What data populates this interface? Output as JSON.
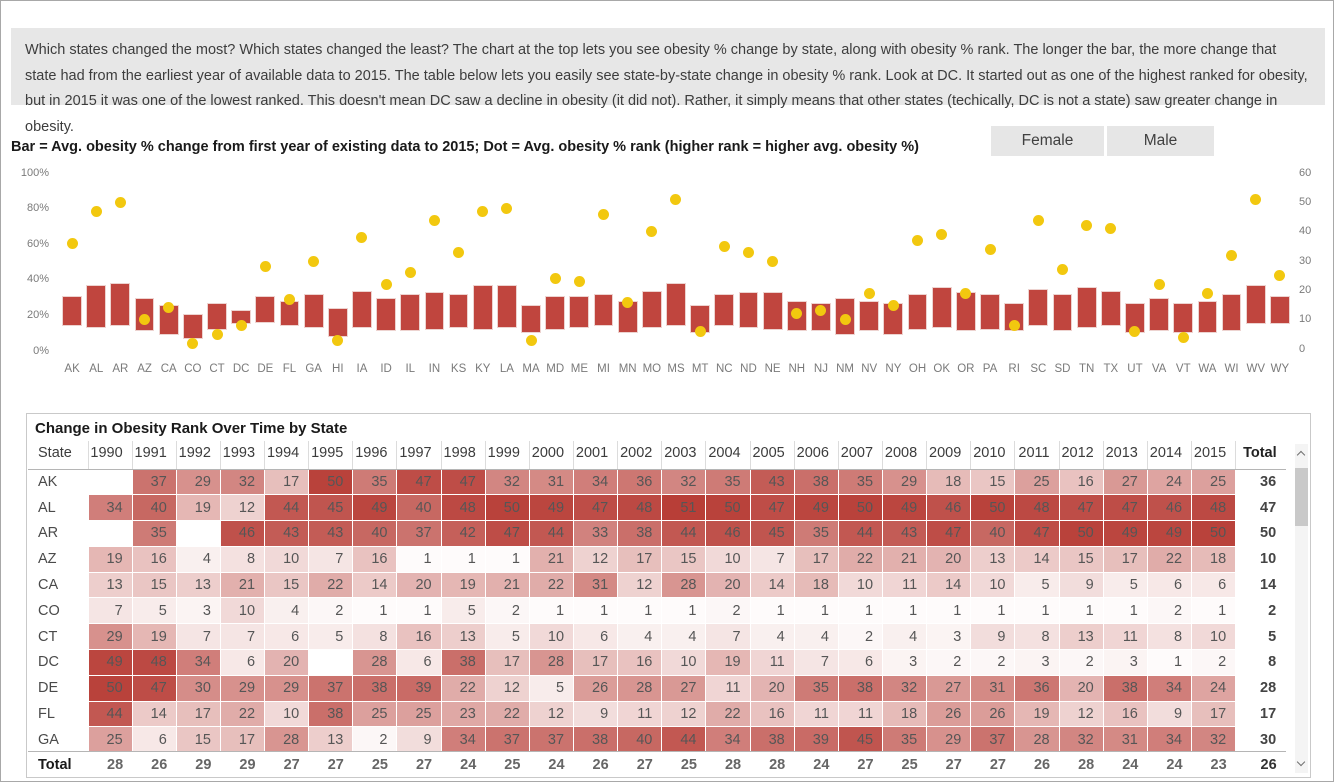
{
  "description": "Which states changed the most?  Which states changed the least?  The chart at the top lets you see obesity % change by state, along with obesity % rank.  The longer the bar, the more change that state had from the earliest year of available data to 2015.  The table below lets you easily see state-by-state change in obesity % rank.  Look at DC.  It started out as one of the highest ranked for obesity, but in 2015 it was one of the lowest ranked.  This doesn't mean DC saw a decline in obesity (it did not).  Rather, it simply means that other states (techically, DC is not a state) saw greater change in obesity.",
  "chart": {
    "title": "Bar = Avg. obesity % change from first year of existing data to 2015; Dot = Avg. obesity % rank (higher rank = higher avg. obesity %)",
    "buttons": [
      {
        "label": "Female"
      },
      {
        "label": "Male"
      }
    ],
    "left_axis_ticks": [
      {
        "label": "100%",
        "pct": 100
      },
      {
        "label": "80%",
        "pct": 80
      },
      {
        "label": "60%",
        "pct": 60
      },
      {
        "label": "40%",
        "pct": 40
      },
      {
        "label": "20%",
        "pct": 20
      },
      {
        "label": "0%",
        "pct": 0
      }
    ],
    "right_axis_ticks": [
      {
        "label": "60",
        "rank": 60
      },
      {
        "label": "50",
        "rank": 50
      },
      {
        "label": "40",
        "rank": 40
      },
      {
        "label": "30",
        "rank": 30
      },
      {
        "label": "20",
        "rank": 20
      },
      {
        "label": "10",
        "rank": 10
      },
      {
        "label": "0",
        "rank": 0
      }
    ]
  },
  "chart_data": {
    "type": "bar",
    "subtype": "floating-range-bars-with-dual-axis-dots",
    "title": "Bar = Avg. obesity % change from first year of existing data to 2015; Dot = Avg. obesity % rank (higher rank = higher avg. obesity %)",
    "categories": [
      "AK",
      "AL",
      "AR",
      "AZ",
      "CA",
      "CO",
      "CT",
      "DC",
      "DE",
      "FL",
      "GA",
      "HI",
      "IA",
      "ID",
      "IL",
      "IN",
      "KS",
      "KY",
      "LA",
      "MA",
      "MD",
      "ME",
      "MI",
      "MN",
      "MO",
      "MS",
      "MT",
      "NC",
      "ND",
      "NE",
      "NH",
      "NJ",
      "NM",
      "NV",
      "NY",
      "OH",
      "OK",
      "OR",
      "PA",
      "RI",
      "SC",
      "SD",
      "TN",
      "TX",
      "UT",
      "VA",
      "VT",
      "WA",
      "WI",
      "WV",
      "WY"
    ],
    "series": [
      {
        "name": "bar_low_pct",
        "axis": "left",
        "values": [
          14,
          13,
          14,
          11,
          9,
          7,
          12,
          15,
          16,
          14,
          13,
          8,
          13,
          11,
          11,
          12,
          13,
          12,
          13,
          10,
          12,
          13,
          14,
          10,
          13,
          14,
          10,
          14,
          13,
          12,
          11,
          11,
          9,
          11,
          9,
          12,
          13,
          11,
          12,
          11,
          14,
          11,
          13,
          14,
          10,
          11,
          10,
          10,
          11,
          15,
          15
        ]
      },
      {
        "name": "bar_high_pct",
        "axis": "left",
        "values": [
          31,
          37,
          38,
          30,
          26,
          21,
          27,
          23,
          31,
          28,
          32,
          24,
          34,
          30,
          32,
          33,
          32,
          37,
          37,
          26,
          31,
          31,
          32,
          28,
          34,
          38,
          26,
          32,
          33,
          33,
          28,
          27,
          30,
          28,
          27,
          32,
          36,
          33,
          32,
          27,
          35,
          32,
          36,
          34,
          27,
          30,
          27,
          28,
          32,
          37,
          31
        ]
      },
      {
        "name": "dot_avg_obesity_rank",
        "axis": "right",
        "values": [
          36,
          47,
          50,
          10,
          14,
          2,
          5,
          8,
          28,
          17,
          30,
          3,
          38,
          22,
          26,
          44,
          33,
          47,
          48,
          3,
          24,
          23,
          46,
          16,
          40,
          51,
          6,
          35,
          33,
          30,
          12,
          13,
          10,
          19,
          15,
          37,
          39,
          19,
          34,
          8,
          44,
          27,
          42,
          41,
          6,
          22,
          4,
          19,
          32,
          51,
          25
        ]
      }
    ],
    "left_ylim": [
      0,
      100
    ],
    "right_ylim": [
      0,
      60
    ],
    "grid": false,
    "legend": "none",
    "bar_color": "#c0453e",
    "dot_color": "#f2c80f"
  },
  "table": {
    "title": "Change in Obesity Rank Over Time by State",
    "columns": [
      "State",
      "1990",
      "1991",
      "1992",
      "1993",
      "1994",
      "1995",
      "1996",
      "1997",
      "1998",
      "1999",
      "2000",
      "2001",
      "2002",
      "2003",
      "2004",
      "2005",
      "2006",
      "2007",
      "2008",
      "2009",
      "2010",
      "2011",
      "2012",
      "2013",
      "2014",
      "2015",
      "Total"
    ],
    "rows": [
      {
        "state": "AK",
        "values": [
          null,
          37,
          29,
          32,
          17,
          50,
          35,
          47,
          47,
          32,
          31,
          34,
          36,
          32,
          35,
          43,
          38,
          35,
          29,
          18,
          15,
          25,
          16,
          27,
          24,
          25
        ],
        "total": 36
      },
      {
        "state": "AL",
        "values": [
          34,
          40,
          19,
          12,
          44,
          45,
          49,
          40,
          48,
          50,
          49,
          47,
          48,
          51,
          50,
          47,
          49,
          50,
          49,
          46,
          50,
          48,
          47,
          47,
          46,
          48
        ],
        "total": 47
      },
      {
        "state": "AR",
        "values": [
          null,
          35,
          null,
          46,
          43,
          43,
          40,
          37,
          42,
          47,
          44,
          33,
          38,
          44,
          46,
          45,
          35,
          44,
          43,
          47,
          40,
          47,
          50,
          49,
          49,
          50
        ],
        "total": 50
      },
      {
        "state": "AZ",
        "values": [
          19,
          16,
          4,
          8,
          10,
          7,
          16,
          1,
          1,
          1,
          21,
          12,
          17,
          15,
          10,
          7,
          17,
          22,
          21,
          20,
          13,
          14,
          15,
          17,
          22,
          18
        ],
        "total": 10
      },
      {
        "state": "CA",
        "values": [
          13,
          15,
          13,
          21,
          15,
          22,
          14,
          20,
          19,
          21,
          22,
          31,
          12,
          28,
          20,
          14,
          18,
          10,
          11,
          14,
          10,
          5,
          9,
          5,
          6,
          6
        ],
        "total": 14
      },
      {
        "state": "CO",
        "values": [
          7,
          5,
          3,
          10,
          4,
          2,
          1,
          1,
          5,
          2,
          1,
          1,
          1,
          1,
          2,
          1,
          1,
          1,
          1,
          1,
          1,
          1,
          1,
          1,
          2,
          1
        ],
        "total": 2
      },
      {
        "state": "CT",
        "values": [
          29,
          19,
          7,
          7,
          6,
          5,
          8,
          16,
          13,
          5,
          10,
          6,
          4,
          4,
          7,
          4,
          4,
          2,
          4,
          3,
          9,
          8,
          13,
          11,
          8,
          10
        ],
        "total": 5
      },
      {
        "state": "DC",
        "values": [
          49,
          48,
          34,
          6,
          20,
          null,
          28,
          6,
          38,
          17,
          28,
          17,
          16,
          10,
          19,
          11,
          7,
          6,
          3,
          2,
          2,
          3,
          2,
          3,
          1,
          2
        ],
        "total": 8
      },
      {
        "state": "DE",
        "values": [
          50,
          47,
          30,
          29,
          29,
          37,
          38,
          39,
          22,
          12,
          5,
          26,
          28,
          27,
          11,
          20,
          35,
          38,
          32,
          27,
          31,
          36,
          20,
          38,
          34,
          24
        ],
        "total": 28
      },
      {
        "state": "FL",
        "values": [
          44,
          14,
          17,
          22,
          10,
          38,
          25,
          25,
          23,
          22,
          12,
          9,
          11,
          12,
          22,
          16,
          11,
          11,
          18,
          26,
          26,
          19,
          12,
          16,
          9,
          17
        ],
        "total": 17
      },
      {
        "state": "GA",
        "values": [
          25,
          6,
          15,
          17,
          28,
          13,
          2,
          9,
          34,
          37,
          37,
          38,
          40,
          44,
          34,
          38,
          39,
          45,
          35,
          29,
          37,
          28,
          32,
          31,
          34,
          32
        ],
        "total": 30
      }
    ],
    "total_row": {
      "state": "Total",
      "values": [
        28,
        26,
        29,
        29,
        27,
        27,
        25,
        27,
        24,
        25,
        24,
        26,
        27,
        25,
        28,
        28,
        24,
        27,
        25,
        27,
        27,
        26,
        28,
        24,
        24,
        23
      ],
      "total": 26
    },
    "heat_scale": {
      "min_color": "#ffffff",
      "max_color": "#b83e37",
      "domain": [
        0,
        51
      ]
    }
  },
  "scrollbar": {
    "up_icon": "chevron-up",
    "down_icon": "chevron-down"
  }
}
